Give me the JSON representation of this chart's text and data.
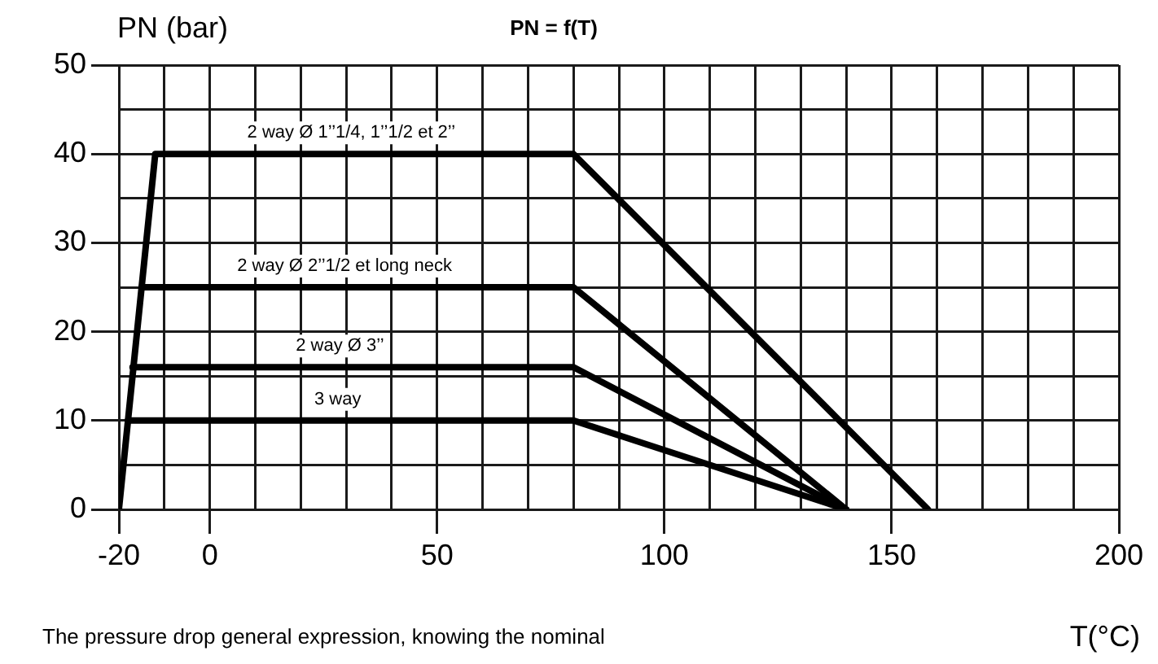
{
  "chart_data": {
    "type": "line",
    "title": "PN = f(T)",
    "ylabel": "PN (bar)",
    "xlabel": "T(°C)",
    "xlim": [
      -20,
      200
    ],
    "xticks": [
      -20,
      {
        "value": -10,
        "label": null
      },
      0,
      {
        "value": 10,
        "label": null
      },
      {
        "value": 20,
        "label": null
      },
      {
        "value": 30,
        "label": null
      },
      {
        "value": 40,
        "label": null
      },
      50,
      {
        "value": 60,
        "label": null
      },
      {
        "value": 70,
        "label": null
      },
      {
        "value": 80,
        "label": null
      },
      {
        "value": 90,
        "label": null
      },
      100,
      {
        "value": 110,
        "label": null
      },
      {
        "value": 120,
        "label": null
      },
      {
        "value": 130,
        "label": null
      },
      {
        "value": 140,
        "label": null
      },
      150,
      {
        "value": 160,
        "label": null
      },
      {
        "value": 170,
        "label": null
      },
      {
        "value": 180,
        "label": null
      },
      {
        "value": 190,
        "label": null
      },
      200
    ],
    "ylim": [
      0,
      50
    ],
    "yticks": [
      0,
      {
        "value": 5,
        "label": null
      },
      10,
      {
        "value": 15,
        "label": null
      },
      20,
      {
        "value": 25,
        "label": null
      },
      30,
      {
        "value": 35,
        "label": null
      },
      40,
      {
        "value": 45,
        "label": null
      },
      50
    ],
    "grid": true,
    "legend": false,
    "marker": "none",
    "line_style": "solid",
    "series": [
      {
        "name": "2 way Ø 1’’1/4, 1’’1/2 et 2’’",
        "color": "#000000",
        "x": [
          -20,
          -12,
          80,
          158
        ],
        "values": [
          0,
          40,
          40,
          0
        ]
      },
      {
        "name": "2 way Ø 2’’1/2 et long neck",
        "color": "#000000",
        "x": [
          -15,
          80,
          140
        ],
        "values": [
          25,
          25,
          0
        ]
      },
      {
        "name": "2 way Ø 3’’",
        "color": "#000000",
        "x": [
          -17,
          80,
          140
        ],
        "values": [
          16,
          16,
          0
        ]
      },
      {
        "name": "3 way",
        "color": "#000000",
        "x": [
          -18,
          80,
          140
        ],
        "values": [
          10,
          10,
          0
        ]
      }
    ],
    "annotations": [
      "The pressure drop general expression, knowing the nominal"
    ]
  }
}
